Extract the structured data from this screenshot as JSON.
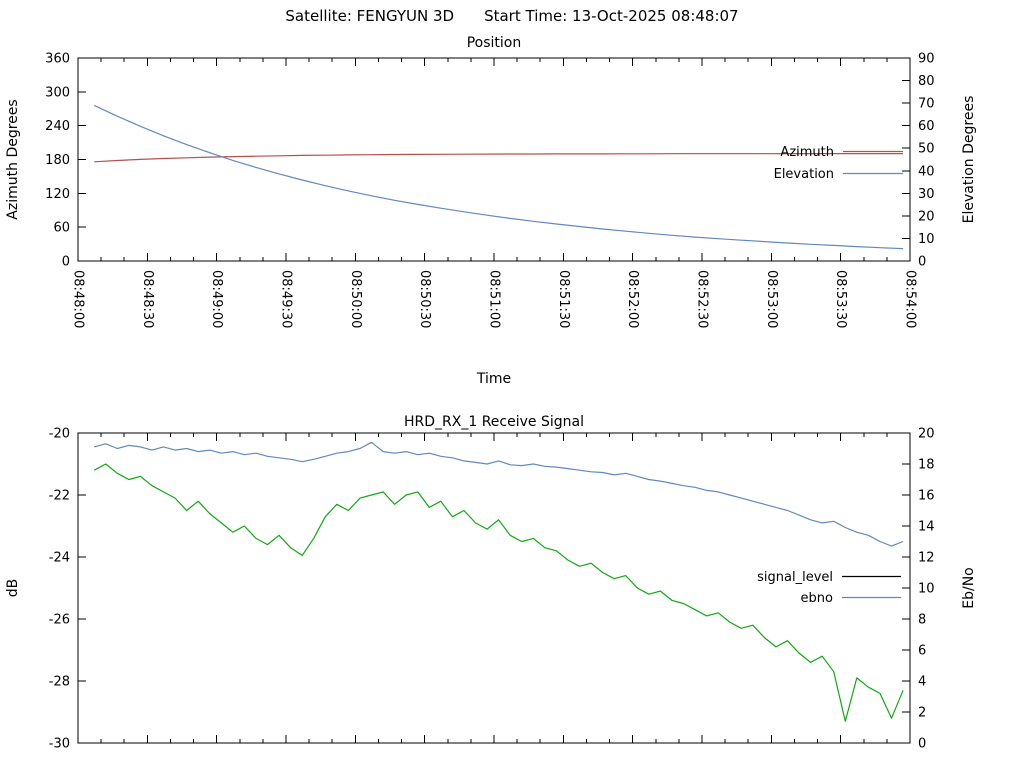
{
  "header": {
    "satellite": "Satellite: FENGYUN 3D",
    "start_time": "Start Time: 13-Oct-2025 08:48:07"
  },
  "colors": {
    "azimuth": "#b5514d",
    "elevation": "#6189bd",
    "ebno": "#6189bd",
    "signal": "#10a810",
    "signal_legend_key": "#000000",
    "axis": "#000000",
    "background": "#ffffff"
  },
  "chart_data": [
    {
      "type": "line",
      "title": "Position",
      "xlabel": "Time",
      "x_domain_sec": [
        0,
        360
      ],
      "x_major_step_sec": 30,
      "x_minor_step_sec": 10,
      "x_tick_labels": [
        "08:48:00",
        "08:48:30",
        "08:49:00",
        "08:49:30",
        "08:50:00",
        "08:50:30",
        "08:51:00",
        "08:51:30",
        "08:52:00",
        "08:52:30",
        "08:53:00",
        "08:53:30",
        "08:54:00"
      ],
      "axis_left": {
        "label": "Azimuth Degrees",
        "lim": [
          0,
          360
        ],
        "ticks": [
          0,
          60,
          120,
          180,
          240,
          300,
          360
        ]
      },
      "axis_right": {
        "label": "Elevation Degrees",
        "lim": [
          0,
          90
        ],
        "ticks": [
          0,
          10,
          20,
          30,
          40,
          50,
          60,
          70,
          80,
          90
        ]
      },
      "legend": [
        {
          "label": "Azimuth",
          "color_key": "azimuth"
        },
        {
          "label": "Elevation",
          "color_key": "elevation"
        }
      ],
      "series": [
        {
          "name": "Azimuth",
          "axis": "left",
          "color_key": "azimuth",
          "t0_sec": 7,
          "dt_sec": 10,
          "values": [
            176.0,
            178.3,
            180.2,
            181.8,
            183.1,
            184.2,
            185.1,
            185.9,
            186.6,
            187.2,
            187.7,
            188.1,
            188.5,
            188.8,
            189.0,
            189.2,
            189.4,
            189.6,
            189.7,
            189.8,
            189.9,
            190.0,
            190.0,
            190.1,
            190.1,
            190.2,
            190.2,
            190.3,
            190.3,
            190.3,
            190.4,
            190.4,
            190.4,
            190.5,
            190.5,
            190.5
          ]
        },
        {
          "name": "Elevation",
          "axis": "right",
          "color_key": "elevation",
          "t0_sec": 7,
          "dt_sec": 10,
          "values": [
            69.0,
            64.2,
            59.7,
            55.5,
            51.6,
            48.0,
            44.6,
            41.5,
            38.6,
            35.9,
            33.4,
            31.1,
            28.9,
            26.9,
            25.1,
            23.4,
            21.8,
            20.3,
            18.9,
            17.6,
            16.4,
            15.3,
            14.2,
            13.2,
            12.3,
            11.4,
            10.6,
            9.9,
            9.2,
            8.6,
            8.0,
            7.4,
            6.9,
            6.4,
            5.9,
            5.5
          ]
        }
      ]
    },
    {
      "type": "line",
      "title": "HRD_RX_1 Receive Signal",
      "xlabel": "",
      "x_domain_sec": [
        0,
        360
      ],
      "x_major_step_sec": 30,
      "x_minor_step_sec": 10,
      "x_tick_labels": [],
      "axis_left": {
        "label": "dB",
        "lim": [
          -30,
          -20
        ],
        "ticks": [
          -30,
          -28,
          -26,
          -24,
          -22,
          -20
        ]
      },
      "axis_right": {
        "label": "Eb/No",
        "lim": [
          0,
          20
        ],
        "ticks": [
          0,
          2,
          4,
          6,
          8,
          10,
          12,
          14,
          16,
          18,
          20
        ]
      },
      "legend": [
        {
          "label": "signal_level",
          "color_key": "signal_legend_key"
        },
        {
          "label": "ebno",
          "color_key": "ebno"
        }
      ],
      "series": [
        {
          "name": "signal_level",
          "axis": "left",
          "color_key": "signal",
          "t0_sec": 7,
          "dt_sec": 5,
          "values": [
            -21.2,
            -21.0,
            -21.3,
            -21.5,
            -21.4,
            -21.7,
            -21.9,
            -22.1,
            -22.5,
            -22.2,
            -22.6,
            -22.9,
            -23.2,
            -23.0,
            -23.4,
            -23.6,
            -23.3,
            -23.7,
            -23.95,
            -23.4,
            -22.7,
            -22.3,
            -22.5,
            -22.1,
            -22.0,
            -21.9,
            -22.3,
            -22.0,
            -21.9,
            -22.4,
            -22.2,
            -22.7,
            -22.5,
            -22.9,
            -23.1,
            -22.8,
            -23.3,
            -23.5,
            -23.4,
            -23.7,
            -23.8,
            -24.1,
            -24.3,
            -24.2,
            -24.5,
            -24.7,
            -24.6,
            -25.0,
            -25.2,
            -25.1,
            -25.4,
            -25.5,
            -25.7,
            -25.9,
            -25.8,
            -26.1,
            -26.3,
            -26.2,
            -26.6,
            -26.9,
            -26.7,
            -27.1,
            -27.4,
            -27.2,
            -27.7,
            -29.3,
            -27.9,
            -28.2,
            -28.4,
            -29.2,
            -28.3
          ]
        },
        {
          "name": "ebno",
          "axis": "right",
          "color_key": "ebno",
          "t0_sec": 7,
          "dt_sec": 5,
          "values": [
            19.1,
            19.3,
            19.0,
            19.2,
            19.1,
            18.9,
            19.1,
            18.9,
            19.0,
            18.8,
            18.9,
            18.7,
            18.8,
            18.6,
            18.7,
            18.5,
            18.4,
            18.3,
            18.15,
            18.3,
            18.5,
            18.7,
            18.8,
            19.0,
            19.4,
            18.8,
            18.7,
            18.8,
            18.6,
            18.7,
            18.5,
            18.4,
            18.2,
            18.1,
            18.0,
            18.2,
            17.95,
            17.9,
            18.0,
            17.85,
            17.8,
            17.7,
            17.6,
            17.5,
            17.45,
            17.3,
            17.4,
            17.2,
            17.0,
            16.9,
            16.75,
            16.6,
            16.5,
            16.3,
            16.2,
            16.0,
            15.8,
            15.6,
            15.4,
            15.2,
            15.0,
            14.7,
            14.4,
            14.2,
            14.3,
            13.9,
            13.6,
            13.4,
            13.0,
            12.7,
            13.0
          ]
        }
      ]
    }
  ]
}
